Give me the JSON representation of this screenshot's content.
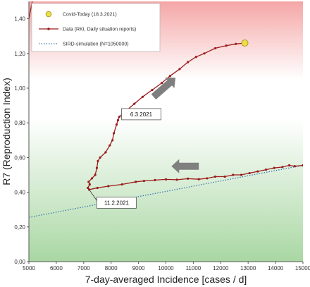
{
  "chart_data": {
    "type": "line",
    "xlabel": "7-day-averaged Incidence [cases / d]",
    "ylabel": "R7 (Reproduction Index)",
    "xlim": [
      5000,
      15000
    ],
    "ylim": [
      0,
      1.5
    ],
    "x_ticks": [
      "5000",
      "6000",
      "7000",
      "8000",
      "9000",
      "10000",
      "11000",
      "12000",
      "13000",
      "14000",
      "15000"
    ],
    "y_ticks": [
      "0,00",
      "0,20",
      "0,40",
      "0,60",
      "0,80",
      "1,00",
      "1,20",
      "1,40"
    ],
    "grid": false,
    "legend_position": "top-left",
    "background": {
      "upper_color": "#f5a6a6",
      "middle_color": "#ffffff",
      "lower_color": "#a9d7a3"
    },
    "series": [
      {
        "name": "Covid-Today (18.3.2021)",
        "kind": "marker",
        "color": "#e8e04a",
        "edge_color": "#b59a20",
        "points": [
          [
            12880,
            1.26
          ]
        ]
      },
      {
        "name": "Data (RKI, Daily situation reports)",
        "kind": "line-markers",
        "color": "#9b1b1b",
        "points": [
          [
            15000,
            0.555
          ],
          [
            14700,
            0.55
          ],
          [
            14500,
            0.555
          ],
          [
            14250,
            0.545
          ],
          [
            13950,
            0.54
          ],
          [
            13650,
            0.53
          ],
          [
            13350,
            0.52
          ],
          [
            13050,
            0.51
          ],
          [
            12750,
            0.5
          ],
          [
            12450,
            0.5
          ],
          [
            12150,
            0.49
          ],
          [
            11800,
            0.49
          ],
          [
            11500,
            0.48
          ],
          [
            11200,
            0.475
          ],
          [
            10800,
            0.478
          ],
          [
            10400,
            0.472
          ],
          [
            10000,
            0.474
          ],
          [
            9600,
            0.47
          ],
          [
            9200,
            0.465
          ],
          [
            8900,
            0.46
          ],
          [
            8400,
            0.445
          ],
          [
            7900,
            0.435
          ],
          [
            7500,
            0.425
          ],
          [
            7200,
            0.415
          ],
          [
            7150,
            0.425
          ],
          [
            7220,
            0.445
          ],
          [
            7180,
            0.46
          ],
          [
            7300,
            0.48
          ],
          [
            7420,
            0.5
          ],
          [
            7480,
            0.54
          ],
          [
            7520,
            0.58
          ],
          [
            7600,
            0.6
          ],
          [
            7800,
            0.63
          ],
          [
            7950,
            0.67
          ],
          [
            8050,
            0.7
          ],
          [
            8100,
            0.74
          ],
          [
            8200,
            0.79
          ],
          [
            8250,
            0.815
          ],
          [
            8300,
            0.835
          ],
          [
            8550,
            0.87
          ],
          [
            8850,
            0.91
          ],
          [
            9150,
            0.95
          ],
          [
            9500,
            0.99
          ],
          [
            9850,
            1.03
          ],
          [
            10150,
            1.07
          ],
          [
            10500,
            1.11
          ],
          [
            10800,
            1.15
          ],
          [
            11100,
            1.18
          ],
          [
            11400,
            1.2
          ],
          [
            11800,
            1.23
          ],
          [
            12200,
            1.245
          ],
          [
            12550,
            1.255
          ],
          [
            12880,
            1.26
          ]
        ]
      },
      {
        "name": "SIRD-simulation (N=1050000)",
        "kind": "dotted-line",
        "color": "#3a7ab0",
        "points": [
          [
            5000,
            0.255
          ],
          [
            15000,
            0.555
          ]
        ]
      }
    ],
    "annotations": [
      {
        "text": "6.3.2021",
        "target": [
          8300,
          0.835
        ],
        "box_at": [
          9100,
          0.85
        ]
      },
      {
        "text": "11.2.2021",
        "target": [
          7200,
          0.415
        ],
        "box_at": [
          8200,
          0.34
        ]
      }
    ],
    "arrows": [
      {
        "from": [
          9550,
          0.95
        ],
        "to": [
          10350,
          1.06
        ],
        "color": "#7f7f7f"
      },
      {
        "from": [
          11200,
          0.55
        ],
        "to": [
          10200,
          0.55
        ],
        "color": "#7f7f7f"
      }
    ]
  }
}
